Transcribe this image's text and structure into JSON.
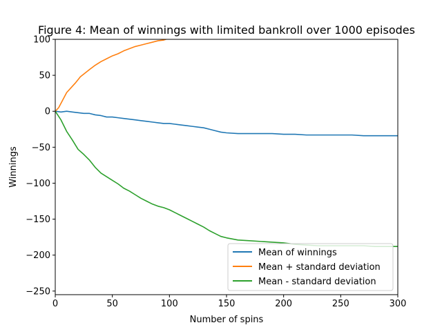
{
  "chart_data": {
    "type": "line",
    "title": "Figure 4: Mean of winnings with limited bankroll over 1000 episodes",
    "xlabel": "Number of spins",
    "ylabel": "Winnings",
    "xlim": [
      0,
      300
    ],
    "ylim": [
      -255,
      100
    ],
    "grid": false,
    "legend_position": "lower-right",
    "x_ticks": [
      0,
      50,
      100,
      150,
      200,
      250,
      300
    ],
    "y_ticks": [
      100,
      50,
      0,
      -50,
      -100,
      -150,
      -200,
      -250
    ],
    "x_tick_labels": [
      "0",
      "50",
      "100",
      "150",
      "200",
      "250",
      "300"
    ],
    "y_tick_labels": [
      "100",
      "50",
      "0",
      "−50",
      "−100",
      "−150",
      "−200",
      "−250"
    ],
    "series": [
      {
        "name": "Mean of winnings",
        "color": "#1f77b4",
        "x": [
          0,
          5,
          10,
          15,
          20,
          25,
          30,
          35,
          40,
          45,
          50,
          55,
          60,
          65,
          70,
          75,
          80,
          85,
          90,
          95,
          100,
          105,
          110,
          115,
          120,
          125,
          130,
          135,
          140,
          145,
          150,
          160,
          170,
          180,
          190,
          200,
          210,
          220,
          230,
          240,
          250,
          260,
          270,
          280,
          290,
          300
        ],
        "y": [
          0,
          -1,
          0,
          -1,
          -2,
          -3,
          -3,
          -5,
          -6,
          -8,
          -8,
          -9,
          -10,
          -11,
          -12,
          -13,
          -14,
          -15,
          -16,
          -17,
          -17,
          -18,
          -19,
          -20,
          -21,
          -22,
          -23,
          -25,
          -27,
          -29,
          -30,
          -31,
          -31,
          -31,
          -31,
          -32,
          -32,
          -33,
          -33,
          -33,
          -33,
          -33,
          -34,
          -34,
          -34,
          -34
        ]
      },
      {
        "name": "Mean + standard deviation",
        "color": "#ff7f0e",
        "x": [
          0,
          3,
          6,
          10,
          14,
          18,
          22,
          26,
          30,
          35,
          40,
          45,
          50,
          55,
          60,
          65,
          70,
          75,
          80,
          85,
          90,
          95,
          97
        ],
        "y": [
          0,
          5,
          14,
          26,
          33,
          40,
          48,
          53,
          58,
          64,
          69,
          73,
          77,
          80,
          84,
          87,
          90,
          92,
          94,
          96,
          98,
          99,
          100
        ]
      },
      {
        "name": "Mean - standard deviation",
        "color": "#2ca02c",
        "x": [
          0,
          5,
          10,
          15,
          20,
          25,
          30,
          35,
          40,
          45,
          50,
          55,
          60,
          65,
          70,
          75,
          80,
          85,
          90,
          95,
          100,
          105,
          110,
          115,
          120,
          125,
          130,
          135,
          140,
          145,
          150,
          160,
          170,
          180,
          190,
          200,
          210,
          220,
          230,
          240,
          250,
          260,
          270,
          280,
          290,
          300
        ],
        "y": [
          0,
          -12,
          -28,
          -40,
          -53,
          -60,
          -68,
          -78,
          -86,
          -91,
          -96,
          -101,
          -107,
          -111,
          -116,
          -121,
          -125,
          -129,
          -132,
          -134,
          -137,
          -141,
          -145,
          -149,
          -153,
          -157,
          -161,
          -166,
          -170,
          -174,
          -176,
          -179,
          -180,
          -181,
          -182,
          -183,
          -185,
          -186,
          -187,
          -187,
          -187,
          -187,
          -187,
          -188,
          -188,
          -188
        ]
      }
    ]
  }
}
